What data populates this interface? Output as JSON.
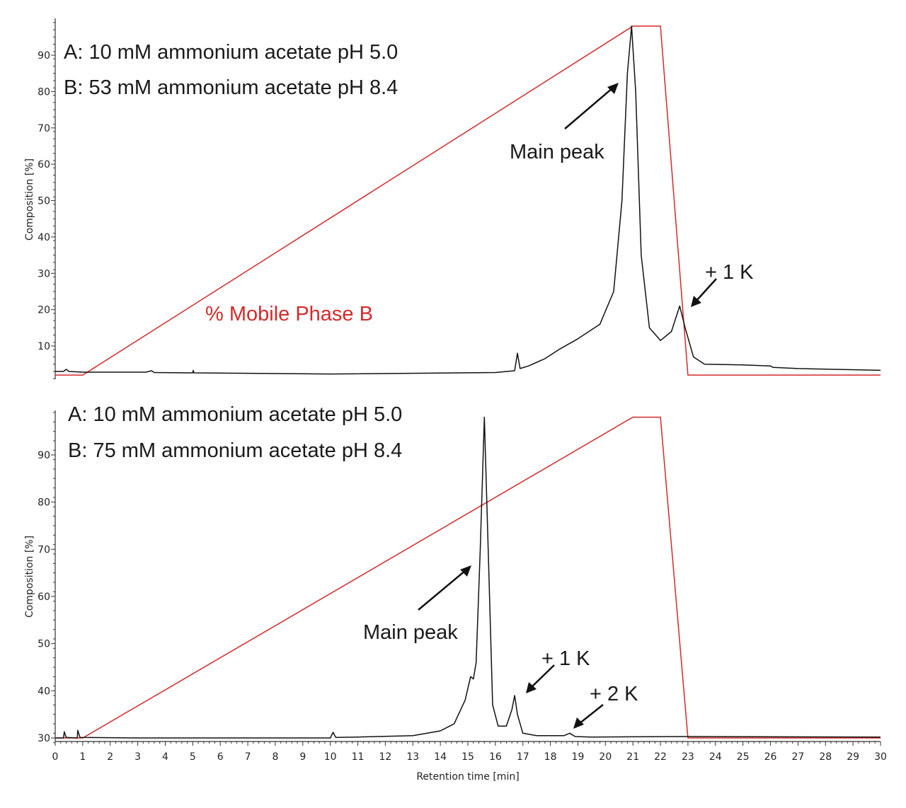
{
  "figure": {
    "colors": {
      "trace": "#111111",
      "gradient": "#d42a2a",
      "axis": "#333333"
    },
    "shared_xaxis": {
      "label": "Retention time [min]",
      "min": 0,
      "max": 30,
      "ticks": [
        0,
        1,
        2,
        3,
        4,
        5,
        6,
        7,
        8,
        9,
        10,
        11,
        12,
        13,
        14,
        15,
        16,
        17,
        18,
        19,
        20,
        21,
        22,
        23,
        24,
        25,
        26,
        27,
        28,
        29,
        30
      ]
    }
  },
  "chart_data": [
    {
      "type": "line",
      "title": "",
      "panel": "top",
      "xlabel": "Retention time [min]",
      "ylabel": "Composition [%]",
      "xlim": [
        0,
        30
      ],
      "ylim": [
        1,
        99
      ],
      "yticks": [
        10,
        20,
        30,
        40,
        50,
        60,
        70,
        80,
        90
      ],
      "grid": false,
      "annotations": {
        "buffer_a": "A: 10 mM ammonium acetate pH 5.0",
        "buffer_b": "B: 53 mM ammonium acetate pH 8.4",
        "gradient_label": "% Mobile Phase B",
        "main_peak": "Main peak",
        "plus1k": "+ 1 K"
      },
      "series": [
        {
          "name": "% Mobile Phase B",
          "color": "#d42a2a",
          "x": [
            0,
            1,
            21,
            22,
            23,
            30
          ],
          "y": [
            2,
            2,
            98,
            98,
            2,
            2
          ]
        },
        {
          "name": "Chromatogram",
          "color": "#111111",
          "x": [
            0,
            0.3,
            0.4,
            0.5,
            1,
            3.3,
            3.5,
            3.6,
            5,
            5.02,
            5.04,
            10,
            16,
            16.7,
            16.8,
            16.9,
            17.2,
            17.8,
            18.3,
            19,
            19.8,
            20.3,
            20.6,
            20.8,
            20.95,
            21.1,
            21.3,
            21.6,
            22,
            22.4,
            22.7,
            22.9,
            23.2,
            23.6,
            25,
            26,
            26.1,
            27,
            30
          ],
          "y": [
            3,
            3,
            3.6,
            3,
            2.8,
            2.8,
            3.2,
            2.7,
            2.6,
            3.3,
            2.6,
            2.3,
            2.7,
            3.2,
            8,
            3.8,
            4.5,
            6.5,
            9,
            12,
            16,
            25,
            50,
            85,
            98,
            80,
            35,
            15,
            11.5,
            14,
            21,
            15,
            7,
            5,
            4.8,
            4.5,
            4.1,
            3.8,
            3.3
          ]
        }
      ]
    },
    {
      "type": "line",
      "title": "",
      "panel": "bottom",
      "xlabel": "Retention time [min]",
      "ylabel": "Composition [%]",
      "xlim": [
        0,
        30
      ],
      "ylim": [
        29,
        99
      ],
      "yticks": [
        30,
        40,
        50,
        60,
        70,
        80,
        90
      ],
      "xticks": [
        0,
        1,
        2,
        3,
        4,
        5,
        6,
        7,
        8,
        9,
        10,
        11,
        12,
        13,
        14,
        15,
        16,
        17,
        18,
        19,
        20,
        21,
        22,
        23,
        24,
        25,
        26,
        27,
        28,
        29,
        30
      ],
      "grid": false,
      "annotations": {
        "buffer_a": "A: 10 mM ammonium acetate pH 5.0",
        "buffer_b": "B: 75 mM ammonium acetate pH 8.4",
        "main_peak": "Main peak",
        "plus1k": "+ 1 K",
        "plus2k": "+ 2 K"
      },
      "series": [
        {
          "name": "% Mobile Phase B",
          "color": "#d42a2a",
          "x": [
            0,
            1,
            21,
            22,
            23,
            30
          ],
          "y": [
            30,
            30,
            98,
            98,
            30,
            30
          ]
        },
        {
          "name": "Chromatogram",
          "color": "#111111",
          "x": [
            0,
            0.3,
            0.33,
            0.4,
            0.8,
            0.82,
            0.9,
            3,
            10,
            10.1,
            10.2,
            11,
            13,
            14,
            14.5,
            14.9,
            15.1,
            15.2,
            15.3,
            15.45,
            15.6,
            15.75,
            15.9,
            16.1,
            16.4,
            16.6,
            16.7,
            16.8,
            17,
            17.5,
            18.5,
            18.7,
            18.9,
            19.5,
            23,
            30
          ],
          "y": [
            30,
            30,
            31.3,
            30.1,
            30,
            31.6,
            30.1,
            30,
            30,
            31.2,
            30.1,
            30.2,
            30.5,
            31.5,
            33,
            38,
            43,
            42.5,
            46,
            70,
            98,
            68,
            37,
            32.5,
            32.5,
            36,
            39,
            35,
            31,
            30.5,
            30.5,
            31,
            30.3,
            30.2,
            30.3,
            30.2
          ]
        }
      ]
    }
  ]
}
